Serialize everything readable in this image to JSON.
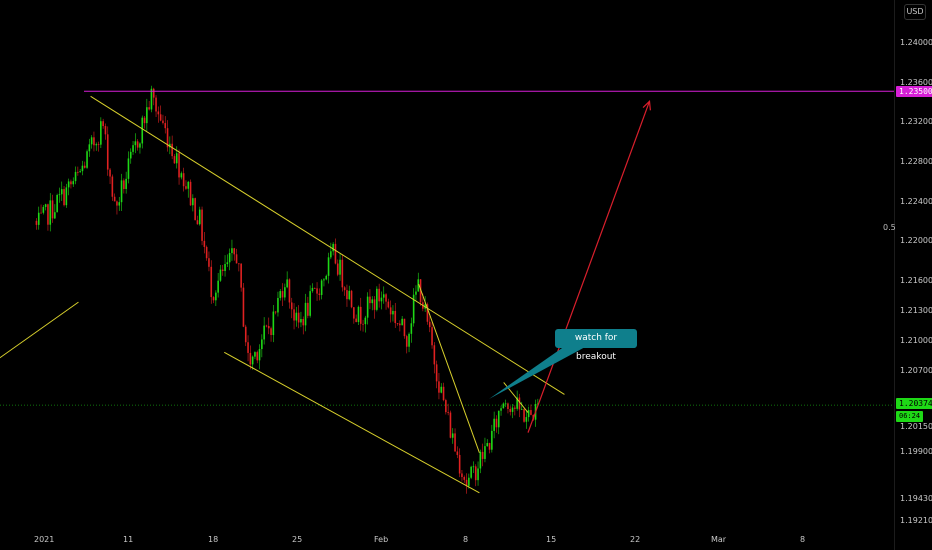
{
  "currency_badge": "USD",
  "price_axis": {
    "ticks": [
      "1.24000",
      "1.23600",
      "1.23200",
      "1.22800",
      "1.22400",
      "1.22000",
      "1.21600",
      "1.21300",
      "1.21000",
      "1.20700",
      "1.20150",
      "1.19900",
      "1.19430",
      "1.19210"
    ]
  },
  "time_axis": {
    "ticks": [
      "2021",
      "11",
      "18",
      "25",
      "Feb",
      "8",
      "15",
      "22",
      "Mar",
      "8"
    ]
  },
  "price_tags": {
    "resistance": "1.23500",
    "current": "1.20374",
    "countdown": "06:24"
  },
  "level_label": "0.5",
  "annotation": "watch for breakout",
  "colors": {
    "background": "#000000",
    "up_candle": "#1ed916",
    "down_candle": "#e02121",
    "trendline": "#d8d02c",
    "resistance_line": "#d61fd6",
    "target_arrow": "#d91f2c",
    "callout": "#0f7f8c"
  },
  "chart_data": {
    "type": "candlestick",
    "instrument_unit": "USD",
    "y_range": [
      1.1914,
      1.2428
    ],
    "resistance_level": 1.235,
    "current_price": 1.20374,
    "x_tick_labels": [
      "2021",
      "11",
      "18",
      "25",
      "Feb",
      "8",
      "15",
      "22",
      "Mar",
      "8"
    ],
    "close_path": [
      {
        "t": "2021-01-04",
        "close": 1.2265
      },
      {
        "t": "2021-01-06",
        "close": 1.2318
      },
      {
        "t": "2021-01-07",
        "close": 1.2232
      },
      {
        "t": "2021-01-08",
        "close": 1.2268
      },
      {
        "t": "2021-01-10",
        "close": 1.2345
      },
      {
        "t": "2021-01-12",
        "close": 1.2285
      },
      {
        "t": "2021-01-14",
        "close": 1.222
      },
      {
        "t": "2021-01-15",
        "close": 1.215
      },
      {
        "t": "2021-01-17",
        "close": 1.219
      },
      {
        "t": "2021-01-18",
        "close": 1.2078
      },
      {
        "t": "2021-01-20",
        "close": 1.2122
      },
      {
        "t": "2021-01-21",
        "close": 1.2165
      },
      {
        "t": "2021-01-22",
        "close": 1.2115
      },
      {
        "t": "2021-01-24",
        "close": 1.216
      },
      {
        "t": "2021-01-25",
        "close": 1.2188
      },
      {
        "t": "2021-01-27",
        "close": 1.2125
      },
      {
        "t": "2021-01-29",
        "close": 1.2148
      },
      {
        "t": "2021-01-31",
        "close": 1.2105
      },
      {
        "t": "2021-02-01",
        "close": 1.216
      },
      {
        "t": "2021-02-02",
        "close": 1.21
      },
      {
        "t": "2021-02-03",
        "close": 1.2042
      },
      {
        "t": "2021-02-04",
        "close": 1.1995
      },
      {
        "t": "2021-02-05",
        "close": 1.1958
      },
      {
        "t": "2021-02-07",
        "close": 1.2005
      },
      {
        "t": "2021-02-08",
        "close": 1.2045
      },
      {
        "t": "2021-02-10",
        "close": 1.2025
      },
      {
        "t": "2021-02-11",
        "close": 1.2037
      }
    ],
    "trendlines": [
      {
        "start": {
          "t": "2021-01-05",
          "price": 1.2345
        },
        "end": {
          "t": "2021-02-13",
          "price": 1.2048
        }
      },
      {
        "start": {
          "t": "2021-01-16",
          "price": 1.209
        },
        "end": {
          "t": "2021-02-06",
          "price": 1.195
        }
      },
      {
        "start": {
          "t": "2021-02-01",
          "price": 1.2158
        },
        "end": {
          "t": "2021-02-06",
          "price": 1.199
        }
      },
      {
        "start": {
          "t": "2021-02-08",
          "price": 1.206
        },
        "end": {
          "t": "2021-02-10",
          "price": 1.203
        }
      },
      {
        "start": {
          "t": "2020-12-28",
          "price": 1.208
        },
        "end": {
          "t": "2021-01-04",
          "price": 1.214
        }
      }
    ],
    "projection_arrow": {
      "start": {
        "t": "2021-02-10",
        "price": 1.201
      },
      "end": {
        "t": "2021-02-20",
        "price": 1.234
      }
    }
  }
}
